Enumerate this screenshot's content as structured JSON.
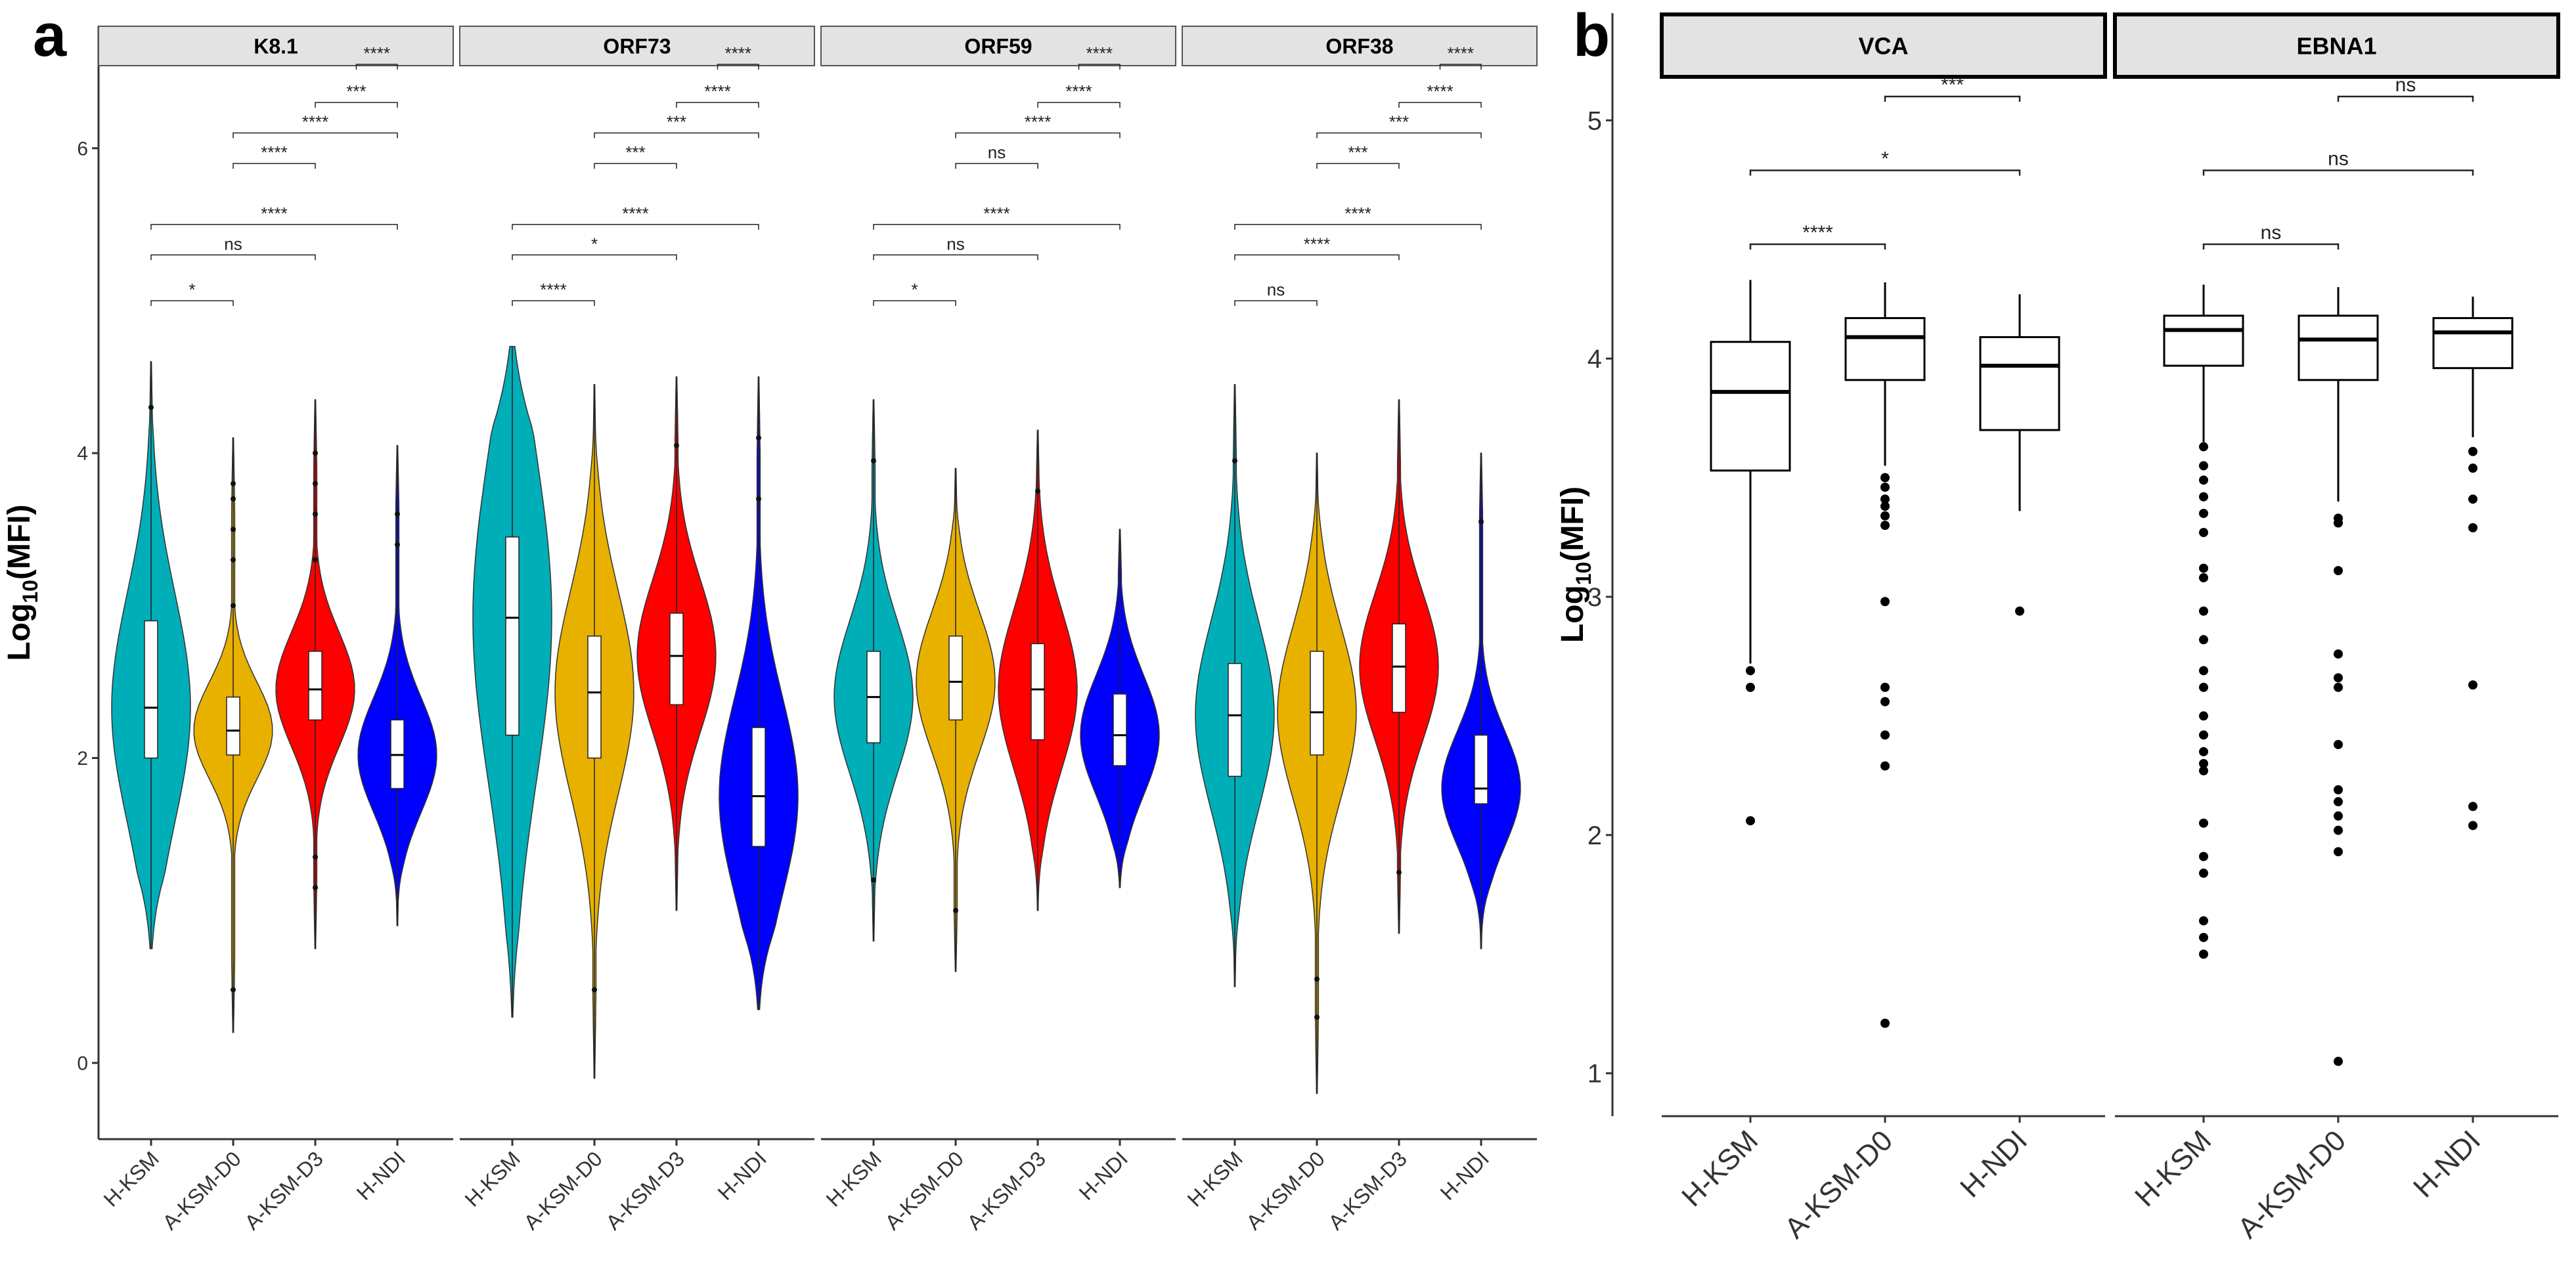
{
  "chart_data": [
    {
      "panel_label": "a",
      "type": "violin",
      "ylabel_main": "Log",
      "ylabel_sub": "10",
      "ylabel_rest": "(MFI)",
      "ylim": [
        -0.5,
        6.8
      ],
      "yticks": [
        "0",
        "2",
        "4",
        "6"
      ],
      "ytick_values": [
        0,
        2,
        4,
        6
      ],
      "categories": [
        "H-KSM",
        "A-KSM-D0",
        "A-KSM-D3",
        "H-NDI"
      ],
      "colors": [
        "#00AEB8",
        "#E8B100",
        "#FF0000",
        "#0000FF"
      ],
      "facets": [
        {
          "name": "K8.1",
          "groups": [
            {
              "min": 0.75,
              "q1": 2.0,
              "median": 2.33,
              "q3": 2.9,
              "max": 4.6,
              "outliers": [
                4.3
              ]
            },
            {
              "min": 0.2,
              "q1": 2.02,
              "median": 2.18,
              "q3": 2.4,
              "max": 4.1,
              "outliers": [
                0.48,
                3.0,
                3.3,
                3.5,
                3.7,
                3.8
              ]
            },
            {
              "min": 0.75,
              "q1": 2.25,
              "median": 2.45,
              "q3": 2.7,
              "max": 4.35,
              "outliers": [
                1.15,
                1.35,
                3.3,
                3.6,
                3.8,
                4.0
              ]
            },
            {
              "min": 0.9,
              "q1": 1.8,
              "median": 2.02,
              "q3": 2.25,
              "max": 4.05,
              "outliers": [
                3.4,
                3.6
              ]
            }
          ],
          "comparisons": [
            {
              "label": "*",
              "from": 0,
              "to": 1,
              "y": 5.0
            },
            {
              "label": "ns",
              "from": 0,
              "to": 2,
              "y": 5.3
            },
            {
              "label": "****",
              "from": 0,
              "to": 3,
              "y": 5.5
            },
            {
              "label": "****",
              "from": 1,
              "to": 2,
              "y": 5.9
            },
            {
              "label": "****",
              "from": 1,
              "to": 3,
              "y": 6.1
            },
            {
              "label": "***",
              "from": 2,
              "to": 3,
              "y": 6.3
            },
            {
              "label": "****",
              "from": 2.5,
              "to": 3,
              "y": 6.55
            }
          ]
        },
        {
          "name": "ORF73",
          "groups": [
            {
              "min": 0.3,
              "q1": 2.15,
              "median": 2.92,
              "q3": 3.45,
              "max": 4.7,
              "outliers": []
            },
            {
              "min": -0.1,
              "q1": 2.0,
              "median": 2.43,
              "q3": 2.8,
              "max": 4.45,
              "outliers": [
                0.48
              ]
            },
            {
              "min": 1.0,
              "q1": 2.35,
              "median": 2.67,
              "q3": 2.95,
              "max": 4.5,
              "outliers": [
                4.05
              ]
            },
            {
              "min": 0.35,
              "q1": 1.42,
              "median": 1.75,
              "q3": 2.2,
              "max": 4.5,
              "outliers": [
                4.1,
                3.7
              ]
            }
          ],
          "comparisons": [
            {
              "label": "****",
              "from": 0,
              "to": 1,
              "y": 5.0
            },
            {
              "label": "*",
              "from": 0,
              "to": 2,
              "y": 5.3
            },
            {
              "label": "****",
              "from": 0,
              "to": 3,
              "y": 5.5
            },
            {
              "label": "***",
              "from": 1,
              "to": 2,
              "y": 5.9
            },
            {
              "label": "***",
              "from": 1,
              "to": 3,
              "y": 6.1
            },
            {
              "label": "****",
              "from": 2,
              "to": 3,
              "y": 6.3
            },
            {
              "label": "****",
              "from": 2.5,
              "to": 3,
              "y": 6.55
            }
          ]
        },
        {
          "name": "ORF59",
          "groups": [
            {
              "min": 0.8,
              "q1": 2.1,
              "median": 2.4,
              "q3": 2.7,
              "max": 4.35,
              "outliers": [
                1.2,
                3.95
              ]
            },
            {
              "min": 0.6,
              "q1": 2.25,
              "median": 2.5,
              "q3": 2.8,
              "max": 3.9,
              "outliers": [
                1.0
              ]
            },
            {
              "min": 1.0,
              "q1": 2.12,
              "median": 2.45,
              "q3": 2.75,
              "max": 4.15,
              "outliers": [
                3.75
              ]
            },
            {
              "min": 1.15,
              "q1": 1.95,
              "median": 2.15,
              "q3": 2.42,
              "max": 3.5,
              "outliers": []
            }
          ],
          "comparisons": [
            {
              "label": "*",
              "from": 0,
              "to": 1,
              "y": 5.0
            },
            {
              "label": "ns",
              "from": 0,
              "to": 2,
              "y": 5.3
            },
            {
              "label": "****",
              "from": 0,
              "to": 3,
              "y": 5.5
            },
            {
              "label": "ns",
              "from": 1,
              "to": 2,
              "y": 5.9
            },
            {
              "label": "****",
              "from": 1,
              "to": 3,
              "y": 6.1
            },
            {
              "label": "****",
              "from": 2,
              "to": 3,
              "y": 6.3
            },
            {
              "label": "****",
              "from": 2.5,
              "to": 3,
              "y": 6.55
            }
          ]
        },
        {
          "name": "ORF38",
          "groups": [
            {
              "min": 0.5,
              "q1": 1.88,
              "median": 2.28,
              "q3": 2.62,
              "max": 4.45,
              "outliers": [
                3.95
              ]
            },
            {
              "min": -0.2,
              "q1": 2.02,
              "median": 2.3,
              "q3": 2.7,
              "max": 4.0,
              "outliers": [
                0.3,
                0.55
              ]
            },
            {
              "min": 0.85,
              "q1": 2.3,
              "median": 2.6,
              "q3": 2.88,
              "max": 4.35,
              "outliers": [
                1.25
              ]
            },
            {
              "min": 0.75,
              "q1": 1.7,
              "median": 1.8,
              "q3": 2.15,
              "max": 4.0,
              "outliers": [
                3.55
              ]
            }
          ],
          "comparisons": [
            {
              "label": "ns",
              "from": 0,
              "to": 1,
              "y": 5.0
            },
            {
              "label": "****",
              "from": 0,
              "to": 2,
              "y": 5.3
            },
            {
              "label": "****",
              "from": 0,
              "to": 3,
              "y": 5.5
            },
            {
              "label": "***",
              "from": 1,
              "to": 2,
              "y": 5.9
            },
            {
              "label": "***",
              "from": 1,
              "to": 3,
              "y": 6.1
            },
            {
              "label": "****",
              "from": 2,
              "to": 3,
              "y": 6.3
            },
            {
              "label": "****",
              "from": 2.5,
              "to": 3,
              "y": 6.55
            }
          ]
        }
      ]
    },
    {
      "panel_label": "b",
      "type": "box",
      "ylabel_main": "Log",
      "ylabel_sub": "10",
      "ylabel_rest": "(MFI)",
      "ylim": [
        0.82,
        5.45
      ],
      "yticks": [
        "1",
        "2",
        "3",
        "4",
        "5"
      ],
      "ytick_values": [
        1,
        2,
        3,
        4,
        5
      ],
      "categories": [
        "H-KSM",
        "A-KSM-D0",
        "H-NDI"
      ],
      "facets": [
        {
          "name": "VCA",
          "groups": [
            {
              "min": 2.72,
              "q1": 3.53,
              "median": 3.86,
              "q3": 4.07,
              "max": 4.33,
              "outliers": [
                2.06,
                2.62,
                2.69
              ]
            },
            {
              "min": 3.55,
              "q1": 3.91,
              "median": 4.09,
              "q3": 4.17,
              "max": 4.32,
              "outliers": [
                1.21,
                2.29,
                2.42,
                2.56,
                2.62,
                2.98,
                3.3,
                3.34,
                3.38,
                3.41,
                3.46,
                3.5
              ]
            },
            {
              "min": 3.36,
              "q1": 3.7,
              "median": 3.97,
              "q3": 4.09,
              "max": 4.27,
              "outliers": [
                2.94
              ]
            }
          ],
          "comparisons": [
            {
              "label": "****",
              "from": 0,
              "to": 1,
              "y": 4.48
            },
            {
              "label": "*",
              "from": 0,
              "to": 2,
              "y": 4.79
            },
            {
              "label": "***",
              "from": 1,
              "to": 2,
              "y": 5.1
            }
          ]
        },
        {
          "name": "EBNA1",
          "groups": [
            {
              "min": 3.65,
              "q1": 3.97,
              "median": 4.12,
              "q3": 4.18,
              "max": 4.31,
              "outliers": [
                1.5,
                1.57,
                1.64,
                1.84,
                1.91,
                2.05,
                2.27,
                2.3,
                2.35,
                2.42,
                2.5,
                2.62,
                2.69,
                2.82,
                2.94,
                3.08,
                3.12,
                3.27,
                3.35,
                3.42,
                3.49,
                3.55,
                3.63
              ]
            },
            {
              "min": 3.4,
              "q1": 3.91,
              "median": 4.08,
              "q3": 4.18,
              "max": 4.3,
              "outliers": [
                1.05,
                1.93,
                2.02,
                2.08,
                2.14,
                2.19,
                2.38,
                2.62,
                2.66,
                2.76,
                3.11,
                3.31,
                3.33
              ]
            },
            {
              "min": 3.67,
              "q1": 3.96,
              "median": 4.11,
              "q3": 4.17,
              "max": 4.26,
              "outliers": [
                2.04,
                2.12,
                2.63,
                3.29,
                3.41,
                3.54,
                3.61
              ]
            }
          ],
          "comparisons": [
            {
              "label": "ns",
              "from": 0,
              "to": 1,
              "y": 4.48
            },
            {
              "label": "ns",
              "from": 0,
              "to": 2,
              "y": 4.79
            },
            {
              "label": "ns",
              "from": 1,
              "to": 2,
              "y": 5.1
            }
          ]
        }
      ]
    }
  ]
}
